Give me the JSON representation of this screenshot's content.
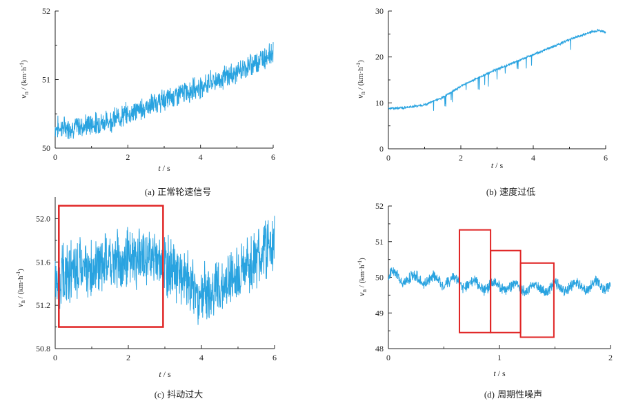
{
  "chart_data": [
    {
      "id": "a",
      "type": "line",
      "caption_tag": "(a)",
      "caption_text": "正常轮速信号",
      "ylabel_sym": "v",
      "ylabel_sub": "n",
      "ylabel_rest": " / (km·h",
      "ylabel_sup": "-1",
      "ylabel_end": ")",
      "xlabel_sym": "t",
      "xlabel_rest": " / s",
      "xlim": [
        0,
        6
      ],
      "ylim": [
        50,
        52
      ],
      "xticks": [
        0,
        2,
        4,
        6
      ],
      "yticks": [
        50,
        51,
        52
      ],
      "xtick_labels": [
        "0",
        "2",
        "4",
        "6"
      ],
      "ytick_labels": [
        "50",
        "51",
        "52"
      ],
      "color": "#29a3e0",
      "series": [
        {
          "x": [
            0,
            0.5,
            1,
            1.5,
            2,
            2.5,
            3,
            3.5,
            4,
            4.5,
            5,
            5.5,
            6
          ],
          "y": [
            50.3,
            50.3,
            50.35,
            50.4,
            50.5,
            50.6,
            50.7,
            50.8,
            50.9,
            51.0,
            51.1,
            51.25,
            51.4
          ],
          "noise": 0.12
        }
      ],
      "boxes": []
    },
    {
      "id": "b",
      "type": "line",
      "caption_tag": "(b)",
      "caption_text": "速度过低",
      "ylabel_sym": "v",
      "ylabel_sub": "n",
      "ylabel_rest": " / (km·h",
      "ylabel_sup": "-1",
      "ylabel_end": ")",
      "xlabel_sym": "t",
      "xlabel_rest": " / s",
      "xlim": [
        0,
        6
      ],
      "ylim": [
        0,
        30
      ],
      "xticks": [
        0,
        2,
        4,
        6
      ],
      "yticks": [
        0,
        10,
        20,
        30
      ],
      "xtick_labels": [
        "0",
        "2",
        "4",
        "6"
      ],
      "ytick_labels": [
        "0",
        "10",
        "20",
        "30"
      ],
      "color": "#29a3e0",
      "series": [
        {
          "x": [
            0,
            0.5,
            1,
            1.5,
            2,
            2.5,
            3,
            3.5,
            4,
            4.5,
            5,
            5.5,
            5.8,
            6
          ],
          "y": [
            8.8,
            9.0,
            9.6,
            11.2,
            13.6,
            15.6,
            17.3,
            18.9,
            20.5,
            22.1,
            23.8,
            25.2,
            25.8,
            25.4
          ],
          "noise": 0.2
        }
      ],
      "boxes": []
    },
    {
      "id": "c",
      "type": "line",
      "caption_tag": "(c)",
      "caption_text": "抖动过大",
      "ylabel_sym": "v",
      "ylabel_sub": "n",
      "ylabel_rest": " / (km·h",
      "ylabel_sup": "-1",
      "ylabel_end": ")",
      "xlabel_sym": "t",
      "xlabel_rest": " / s",
      "xlim": [
        0,
        6
      ],
      "ylim": [
        50.8,
        52.2
      ],
      "xticks": [
        0,
        2,
        4,
        6
      ],
      "yticks": [
        50.8,
        51.2,
        51.6,
        52.0
      ],
      "xtick_labels": [
        "0",
        "2",
        "4",
        "6"
      ],
      "ytick_labels": [
        "50.8",
        "51.2",
        "51.6",
        "52.0"
      ],
      "color": "#29a3e0",
      "series": [
        {
          "x": [
            0,
            0.5,
            1,
            1.5,
            2,
            2.5,
            3,
            3.5,
            4,
            4.5,
            5,
            5.5,
            6
          ],
          "y": [
            51.45,
            51.5,
            51.55,
            51.6,
            51.62,
            51.65,
            51.6,
            51.45,
            51.3,
            51.35,
            51.5,
            51.65,
            51.8
          ],
          "noise": 0.2
        }
      ],
      "boxes": [
        {
          "x0": 0.1,
          "x1": 2.95,
          "y0": 51.0,
          "y1": 52.12
        }
      ]
    },
    {
      "id": "d",
      "type": "line",
      "caption_tag": "(d)",
      "caption_text": "周期性噪声",
      "ylabel_sym": "v",
      "ylabel_sub": "n",
      "ylabel_rest": " / (km·h",
      "ylabel_sup": "-1",
      "ylabel_end": ")",
      "xlabel_sym": "t",
      "xlabel_rest": " / s",
      "xlim": [
        0,
        2
      ],
      "ylim": [
        48,
        52
      ],
      "xticks": [
        0,
        1,
        2
      ],
      "yticks": [
        48,
        49,
        50,
        51,
        52
      ],
      "xtick_labels": [
        "0",
        "1",
        "2"
      ],
      "ytick_labels": [
        "48",
        "49",
        "50",
        "51",
        "52"
      ],
      "color": "#29a3e0",
      "series": [
        {
          "x": [
            0,
            0.25,
            0.5,
            0.75,
            1,
            1.25,
            1.5,
            1.75,
            2
          ],
          "y": [
            50.05,
            49.95,
            49.9,
            49.8,
            49.75,
            49.7,
            49.7,
            49.75,
            49.8
          ],
          "noise": 0.12
        }
      ],
      "boxes": [
        {
          "x0": 0.64,
          "x1": 0.92,
          "y0": 48.45,
          "y1": 51.33
        },
        {
          "x0": 0.92,
          "x1": 1.19,
          "y0": 48.45,
          "y1": 50.75
        },
        {
          "x0": 1.19,
          "x1": 1.49,
          "y0": 48.32,
          "y1": 50.4
        }
      ]
    }
  ]
}
